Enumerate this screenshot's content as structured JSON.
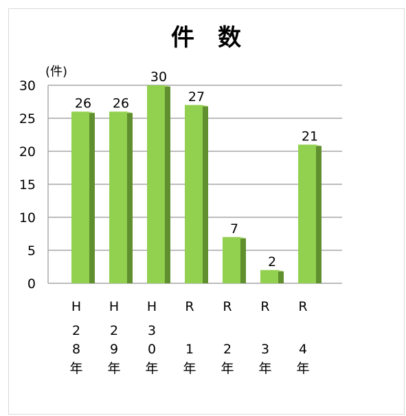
{
  "chart_data": {
    "type": "bar",
    "title": "件　数",
    "unit_label": "(件)",
    "categories": [
      [
        "H",
        "2",
        "8",
        "年"
      ],
      [
        "H",
        "2",
        "9",
        "年"
      ],
      [
        "H",
        "3",
        "0",
        "年"
      ],
      [
        "R",
        "",
        "1",
        "年"
      ],
      [
        "R",
        "",
        "2",
        "年"
      ],
      [
        "R",
        "",
        "3",
        "年"
      ],
      [
        "R",
        "",
        "4",
        "年"
      ]
    ],
    "values": [
      26,
      26,
      30,
      27,
      7,
      2,
      21
    ],
    "ylim": [
      0,
      30
    ],
    "yticks": [
      0,
      5,
      10,
      15,
      20,
      25,
      30
    ],
    "grid": true,
    "colors": {
      "bar_face": "#92d050",
      "bar_side": "#5f8f2e",
      "bar_top": "#b8e27f",
      "grid": "#a6a6a6"
    }
  }
}
